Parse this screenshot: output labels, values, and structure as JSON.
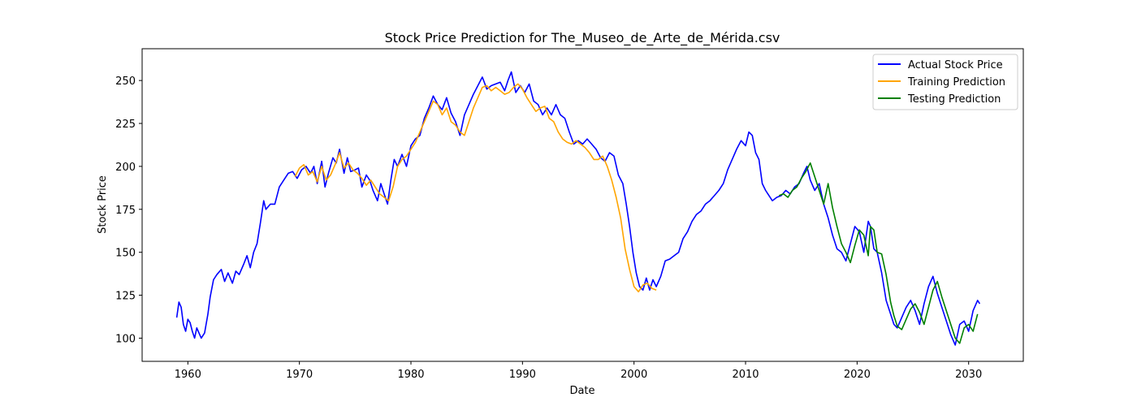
{
  "chart_data": {
    "type": "line",
    "title": "Stock Price Prediction for The_Museo_de_Arte_de_Mérida.csv",
    "xlabel": "Date",
    "ylabel": "Stock Price",
    "xlim": [
      1955.9,
      2034.9
    ],
    "ylim": [
      86.5,
      268.5
    ],
    "x_ticks": [
      1960,
      1970,
      1980,
      1990,
      2000,
      2010,
      2020,
      2030
    ],
    "y_ticks": [
      100,
      125,
      150,
      175,
      200,
      225,
      250
    ],
    "grid": false,
    "legend_position": "top-right",
    "series": [
      {
        "name": "Actual Stock Price",
        "color": "#0000ff",
        "x": [
          1959.0,
          1959.2,
          1959.4,
          1959.6,
          1959.8,
          1960.0,
          1960.2,
          1960.4,
          1960.6,
          1960.8,
          1961.0,
          1961.2,
          1961.5,
          1961.8,
          1962.0,
          1962.3,
          1962.6,
          1963.0,
          1963.3,
          1963.6,
          1964.0,
          1964.3,
          1964.6,
          1965.0,
          1965.3,
          1965.6,
          1965.9,
          1966.2,
          1966.5,
          1966.8,
          1967.0,
          1967.4,
          1967.8,
          1968.2,
          1968.6,
          1969.0,
          1969.4,
          1969.8,
          1970.2,
          1970.6,
          1971.0,
          1971.3,
          1971.6,
          1972.0,
          1972.3,
          1972.6,
          1973.0,
          1973.3,
          1973.6,
          1974.0,
          1974.3,
          1974.6,
          1975.0,
          1975.3,
          1975.6,
          1976.0,
          1976.3,
          1976.6,
          1977.0,
          1977.3,
          1977.6,
          1977.9,
          1978.2,
          1978.5,
          1978.8,
          1979.2,
          1979.6,
          1980.0,
          1980.4,
          1980.8,
          1981.2,
          1981.6,
          1982.0,
          1982.4,
          1982.8,
          1983.2,
          1983.6,
          1984.0,
          1984.4,
          1984.8,
          1985.2,
          1985.6,
          1986.0,
          1986.4,
          1986.8,
          1987.2,
          1987.6,
          1988.0,
          1988.4,
          1988.7,
          1989.0,
          1989.4,
          1989.8,
          1990.2,
          1990.6,
          1991.0,
          1991.4,
          1991.8,
          1992.2,
          1992.6,
          1993.0,
          1993.4,
          1993.8,
          1994.2,
          1994.6,
          1995.0,
          1995.4,
          1995.8,
          1996.2,
          1996.6,
          1997.0,
          1997.4,
          1997.8,
          1998.2,
          1998.6,
          1999.0,
          1999.3,
          1999.6,
          1999.9,
          2000.2,
          2000.5,
          2000.8,
          2001.1,
          2001.4,
          2001.7,
          2002.0,
          2002.4,
          2002.8,
          2003.2,
          2003.6,
          2004.0,
          2004.4,
          2004.8,
          2005.2,
          2005.6,
          2006.0,
          2006.4,
          2006.8,
          2007.2,
          2007.6,
          2008.0,
          2008.4,
          2008.8,
          2009.2,
          2009.6,
          2010.0,
          2010.3,
          2010.6,
          2010.9,
          2011.2,
          2011.5,
          2011.8,
          2012.0,
          2012.4,
          2012.8,
          2013.2,
          2013.6,
          2014.0,
          2014.4,
          2014.8,
          2015.2,
          2015.5,
          2015.8,
          2016.2,
          2016.6,
          2017.0,
          2017.4,
          2017.8,
          2018.2,
          2018.6,
          2019.0,
          2019.4,
          2019.8,
          2020.2,
          2020.6,
          2021.0,
          2021.2,
          2021.5,
          2021.8,
          2022.2,
          2022.6,
          2023.0,
          2023.3,
          2023.6,
          2024.0,
          2024.4,
          2024.8,
          2025.2,
          2025.6,
          2026.0,
          2026.4,
          2026.8,
          2027.2,
          2027.6,
          2028.0,
          2028.4,
          2028.8,
          2029.2,
          2029.6,
          2030.0,
          2030.4,
          2030.8,
          2031.0
        ],
        "values": [
          112,
          121,
          118,
          108,
          104,
          111,
          109,
          104,
          100,
          106,
          103,
          100,
          103,
          114,
          124,
          134,
          137,
          140,
          133,
          138,
          132,
          139,
          137,
          143,
          148,
          141,
          150,
          155,
          167,
          180,
          175,
          178,
          178,
          188,
          192,
          196,
          197,
          193,
          198,
          200,
          196,
          200,
          190,
          203,
          188,
          196,
          205,
          202,
          210,
          196,
          205,
          197,
          198,
          199,
          188,
          195,
          192,
          186,
          180,
          190,
          184,
          178,
          192,
          204,
          200,
          207,
          200,
          212,
          216,
          218,
          228,
          234,
          241,
          236,
          233,
          240,
          231,
          226,
          218,
          230,
          236,
          242,
          247,
          252,
          245,
          247,
          248,
          249,
          244,
          250,
          255,
          243,
          247,
          243,
          248,
          238,
          236,
          230,
          234,
          230,
          236,
          230,
          228,
          220,
          213,
          215,
          213,
          216,
          213,
          210,
          205,
          203,
          208,
          206,
          195,
          190,
          178,
          165,
          150,
          138,
          130,
          128,
          135,
          128,
          134,
          130,
          136,
          145,
          146,
          148,
          150,
          158,
          162,
          168,
          172,
          174,
          178,
          180,
          183,
          186,
          190,
          198,
          204,
          210,
          215,
          212,
          220,
          218,
          208,
          204,
          190,
          186,
          184,
          180,
          182,
          183,
          186,
          184,
          188,
          190,
          196,
          200,
          192,
          186,
          190,
          178,
          170,
          160,
          152,
          150,
          145,
          155,
          165,
          162,
          150,
          168,
          165,
          152,
          150,
          138,
          122,
          114,
          108,
          106,
          112,
          118,
          122,
          116,
          108,
          120,
          130,
          136,
          126,
          118,
          110,
          102,
          96,
          108,
          110,
          104,
          116,
          122,
          120
        ]
      },
      {
        "name": "Training Prediction",
        "color": "#ffa500",
        "x": [
          1969.6,
          1970.0,
          1970.4,
          1970.8,
          1971.2,
          1971.6,
          1972.0,
          1972.4,
          1972.8,
          1973.2,
          1973.6,
          1974.0,
          1974.4,
          1974.8,
          1975.2,
          1975.6,
          1976.0,
          1976.4,
          1976.8,
          1977.2,
          1977.6,
          1978.0,
          1978.4,
          1978.8,
          1979.2,
          1979.6,
          1980.0,
          1980.4,
          1980.8,
          1981.2,
          1981.6,
          1982.0,
          1982.4,
          1982.8,
          1983.2,
          1983.6,
          1984.0,
          1984.4,
          1984.8,
          1985.2,
          1985.6,
          1986.0,
          1986.4,
          1986.8,
          1987.2,
          1987.6,
          1988.0,
          1988.4,
          1988.8,
          1989.2,
          1989.6,
          1990.0,
          1990.4,
          1990.8,
          1991.2,
          1991.6,
          1992.0,
          1992.4,
          1992.8,
          1993.2,
          1993.6,
          1994.0,
          1994.4,
          1994.8,
          1995.2,
          1995.6,
          1996.0,
          1996.4,
          1996.8,
          1997.2,
          1997.6,
          1998.0,
          1998.4,
          1998.8,
          1999.2,
          1999.6,
          2000.0,
          2000.4,
          2000.8,
          2001.2,
          2001.6,
          2002.0
        ],
        "values": [
          194,
          199,
          201,
          195,
          197,
          191,
          200,
          192,
          195,
          201,
          208,
          199,
          202,
          198,
          196,
          193,
          189,
          192,
          188,
          184,
          182,
          180,
          188,
          200,
          204,
          206,
          210,
          214,
          220,
          226,
          232,
          238,
          236,
          230,
          234,
          226,
          224,
          220,
          218,
          226,
          234,
          240,
          246,
          247,
          244,
          246,
          244,
          242,
          243,
          246,
          248,
          245,
          240,
          236,
          232,
          234,
          235,
          228,
          226,
          220,
          216,
          214,
          213,
          215,
          213,
          211,
          208,
          204,
          204,
          206,
          200,
          192,
          182,
          170,
          152,
          140,
          130,
          127,
          131,
          132,
          129,
          128
        ]
      },
      {
        "name": "Testing Prediction",
        "color": "#008000",
        "x": [
          2013.0,
          2013.4,
          2013.8,
          2014.2,
          2014.6,
          2015.0,
          2015.4,
          2015.8,
          2016.2,
          2016.6,
          2017.0,
          2017.4,
          2017.8,
          2018.2,
          2018.6,
          2019.0,
          2019.4,
          2019.8,
          2020.2,
          2020.6,
          2021.0,
          2021.2,
          2021.5,
          2021.8,
          2022.2,
          2022.6,
          2023.0,
          2023.3,
          2023.6,
          2024.0,
          2024.4,
          2024.8,
          2025.2,
          2025.6,
          2026.0,
          2026.4,
          2026.8,
          2027.2,
          2027.6,
          2028.0,
          2028.4,
          2028.8,
          2029.2,
          2029.6,
          2030.0,
          2030.4,
          2030.8
        ],
        "values": [
          183,
          184,
          182,
          186,
          188,
          193,
          197,
          202,
          194,
          186,
          178,
          190,
          176,
          165,
          155,
          150,
          144,
          154,
          163,
          160,
          148,
          165,
          163,
          150,
          149,
          137,
          121,
          113,
          107,
          105,
          111,
          117,
          120,
          115,
          108,
          118,
          128,
          133,
          124,
          116,
          108,
          100,
          97,
          106,
          108,
          104,
          114
        ]
      }
    ]
  }
}
